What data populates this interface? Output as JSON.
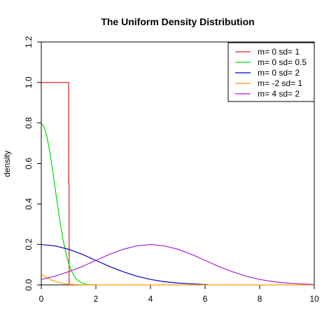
{
  "chart_data": {
    "type": "line",
    "title": "The Uniform Density Distribution",
    "xlabel": "",
    "ylabel": "density",
    "xlim": [
      0,
      10
    ],
    "ylim": [
      0,
      1.2
    ],
    "x_ticks": [
      "0",
      "2",
      "4",
      "6",
      "8",
      "10"
    ],
    "y_ticks": [
      "0.0",
      "0.2",
      "0.4",
      "0.6",
      "0.8",
      "1.0",
      "1.2"
    ],
    "legend_position": "top-right",
    "grid": false,
    "series": [
      {
        "name": "m= 0  sd= 1",
        "color": "#e41a1c",
        "points": [
          [
            0,
            1.0
          ],
          [
            1.0,
            1.0
          ],
          [
            1.0,
            0.5
          ],
          [
            1.02,
            0.5
          ],
          [
            1.02,
            0.0
          ],
          [
            1.3,
            0.0
          ]
        ]
      },
      {
        "name": "m= 0  sd= 0.5",
        "color": "#00dd00",
        "points": [
          [
            0,
            0.798
          ],
          [
            0.1,
            0.782
          ],
          [
            0.2,
            0.736
          ],
          [
            0.3,
            0.666
          ],
          [
            0.4,
            0.579
          ],
          [
            0.5,
            0.484
          ],
          [
            0.6,
            0.389
          ],
          [
            0.7,
            0.3
          ],
          [
            0.8,
            0.222
          ],
          [
            0.9,
            0.158
          ],
          [
            1.0,
            0.108
          ],
          [
            1.1,
            0.071
          ],
          [
            1.2,
            0.045
          ],
          [
            1.3,
            0.027
          ],
          [
            1.4,
            0.016
          ],
          [
            1.5,
            0.009
          ],
          [
            1.6,
            0.005
          ],
          [
            1.7,
            0.002
          ],
          [
            1.8,
            0.001
          ],
          [
            2.0,
            0.0
          ]
        ]
      },
      {
        "name": "m= 0  sd= 2",
        "color": "#0000cc",
        "points": [
          [
            0,
            0.199
          ],
          [
            0.5,
            0.193
          ],
          [
            1.0,
            0.176
          ],
          [
            1.5,
            0.151
          ],
          [
            2.0,
            0.121
          ],
          [
            2.5,
            0.091
          ],
          [
            3.0,
            0.065
          ],
          [
            3.5,
            0.043
          ],
          [
            4.0,
            0.027
          ],
          [
            4.5,
            0.016
          ],
          [
            5.0,
            0.009
          ],
          [
            5.5,
            0.005
          ],
          [
            6.0,
            0.002
          ],
          [
            6.1,
            0.002
          ]
        ]
      },
      {
        "name": "m= -2  sd= 1",
        "color": "#ff9900",
        "points": [
          [
            0,
            0.054
          ],
          [
            0.2,
            0.036
          ],
          [
            0.4,
            0.022
          ],
          [
            0.6,
            0.014
          ],
          [
            0.8,
            0.008
          ],
          [
            1.0,
            0.004
          ],
          [
            1.2,
            0.002
          ],
          [
            1.4,
            0.001
          ],
          [
            1.6,
            0.0
          ],
          [
            10,
            0.0
          ]
        ]
      },
      {
        "name": "m= 4  sd= 2",
        "color": "#aa22cc",
        "points": [
          [
            0,
            0.027
          ],
          [
            0.5,
            0.043
          ],
          [
            1.0,
            0.065
          ],
          [
            1.5,
            0.091
          ],
          [
            2.0,
            0.121
          ],
          [
            2.5,
            0.151
          ],
          [
            3.0,
            0.176
          ],
          [
            3.5,
            0.193
          ],
          [
            4.0,
            0.199
          ],
          [
            4.5,
            0.193
          ],
          [
            5.0,
            0.176
          ],
          [
            5.5,
            0.151
          ],
          [
            6.0,
            0.121
          ],
          [
            6.5,
            0.091
          ],
          [
            7.0,
            0.065
          ],
          [
            7.5,
            0.043
          ],
          [
            8.0,
            0.027
          ],
          [
            8.5,
            0.016
          ],
          [
            9.0,
            0.009
          ],
          [
            9.5,
            0.005
          ],
          [
            10.0,
            0.002
          ]
        ]
      }
    ]
  }
}
